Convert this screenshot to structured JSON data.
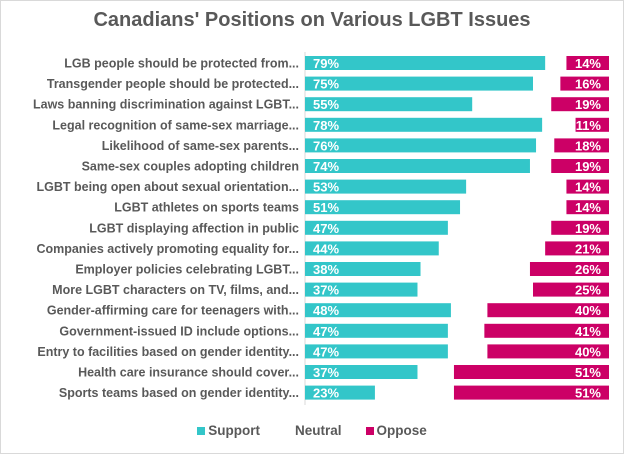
{
  "chart_data": {
    "type": "bar",
    "orientation": "horizontal",
    "stacked": true,
    "title": "Canadians' Positions on Various LGBT Issues",
    "xlabel": "",
    "ylabel": "",
    "xlim": [
      0,
      100
    ],
    "grid": false,
    "legend_position": "bottom",
    "categories": [
      "LGB people should be protected from...",
      "Transgender people should be protected...",
      "Laws banning discrimination against LGBT...",
      "Legal recognition of same-sex marriage...",
      "Likelihood of same-sex parents...",
      "Same-sex couples adopting children",
      "LGBT being open about sexual orientation...",
      "LGBT athletes on sports teams",
      "LGBT displaying affection in public",
      "Companies actively promoting equality for...",
      "Employer policies celebrating LGBT...",
      "More LGBT characters on TV, films, and...",
      "Gender-affirming care for teenagers with...",
      "Government-issued ID include options...",
      "Entry to facilities based on gender identity...",
      "Health care insurance should cover...",
      "Sports teams based on gender identity..."
    ],
    "series": [
      {
        "name": "Support",
        "color": "#33c6c9",
        "values": [
          79,
          75,
          55,
          78,
          76,
          74,
          53,
          51,
          47,
          44,
          38,
          37,
          48,
          47,
          47,
          37,
          23
        ]
      },
      {
        "name": "Neutral",
        "color": "#ffffff",
        "values": [
          7,
          9,
          26,
          11,
          6,
          7,
          33,
          35,
          34,
          35,
          36,
          38,
          12,
          12,
          13,
          12,
          26
        ]
      },
      {
        "name": "Oppose",
        "color": "#cc0066",
        "values": [
          14,
          16,
          19,
          11,
          18,
          19,
          14,
          14,
          19,
          21,
          26,
          25,
          40,
          41,
          40,
          51,
          51
        ]
      }
    ],
    "data_labels": {
      "Support": [
        "79%",
        "75%",
        "55%",
        "78%",
        "76%",
        "74%",
        "53%",
        "51%",
        "47%",
        "44%",
        "38%",
        "37%",
        "48%",
        "47%",
        "47%",
        "37%",
        "23%"
      ],
      "Oppose": [
        "14%",
        "16%",
        "19%",
        "11%",
        "18%",
        "19%",
        "14%",
        "14%",
        "19%",
        "21%",
        "26%",
        "25%",
        "40%",
        "41%",
        "40%",
        "51%",
        "51%"
      ]
    }
  },
  "legend": [
    {
      "label": "Support",
      "color": "#33c6c9"
    },
    {
      "label": "Neutral",
      "color": "#ffffff"
    },
    {
      "label": "Oppose",
      "color": "#cc0066"
    }
  ]
}
